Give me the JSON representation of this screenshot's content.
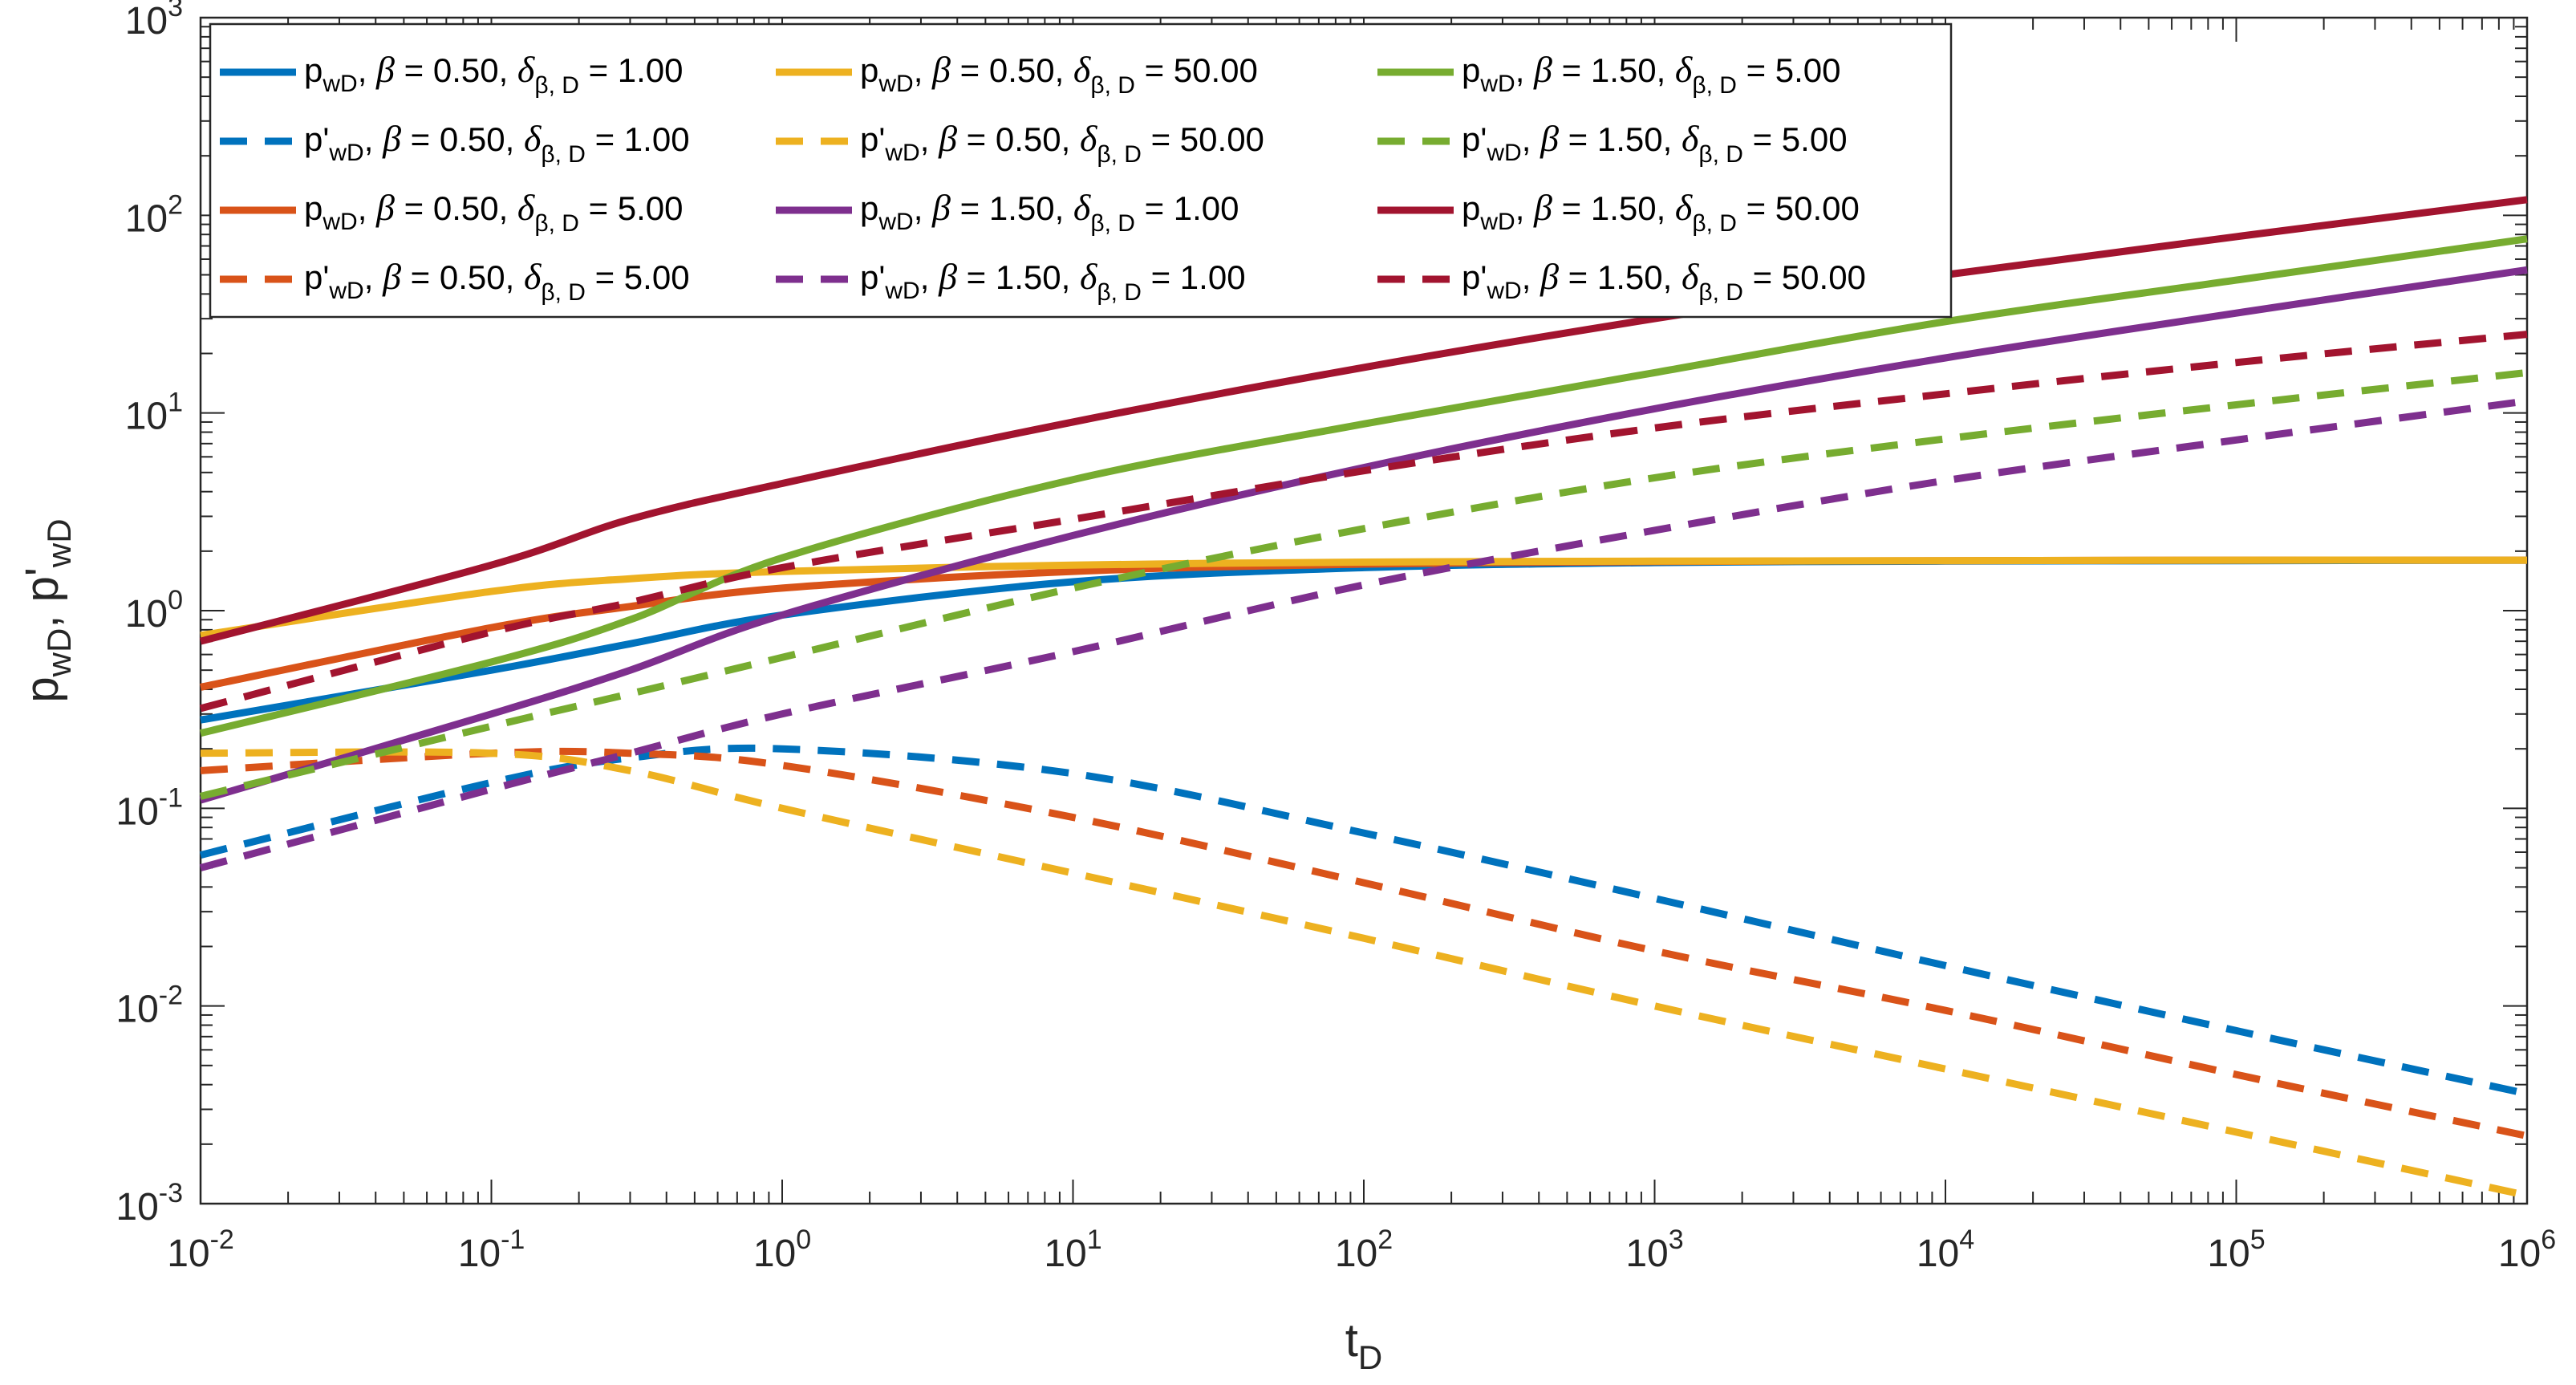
{
  "chart_data": {
    "type": "line",
    "xscale": "log",
    "yscale": "log",
    "xlim": [
      0.01,
      1000000
    ],
    "ylim": [
      0.001,
      1000
    ],
    "xlabel": {
      "main": "t",
      "sub": "D"
    },
    "ylabel": {
      "p": "p",
      "wD1": "wD",
      "sep": ", ",
      "pprime": "p'",
      "wD2": "wD"
    },
    "xticks": [
      {
        "base": "10",
        "exp": "-2",
        "value": 0.01
      },
      {
        "base": "10",
        "exp": "-1",
        "value": 0.1
      },
      {
        "base": "10",
        "exp": "0",
        "value": 1
      },
      {
        "base": "10",
        "exp": "1",
        "value": 10
      },
      {
        "base": "10",
        "exp": "2",
        "value": 100
      },
      {
        "base": "10",
        "exp": "3",
        "value": 1000
      },
      {
        "base": "10",
        "exp": "4",
        "value": 10000
      },
      {
        "base": "10",
        "exp": "5",
        "value": 100000
      },
      {
        "base": "10",
        "exp": "6",
        "value": 1000000
      }
    ],
    "yticks": [
      {
        "base": "10",
        "exp": "-3",
        "value": 0.001
      },
      {
        "base": "10",
        "exp": "-2",
        "value": 0.01
      },
      {
        "base": "10",
        "exp": "-1",
        "value": 0.1
      },
      {
        "base": "10",
        "exp": "0",
        "value": 1
      },
      {
        "base": "10",
        "exp": "1",
        "value": 10
      },
      {
        "base": "10",
        "exp": "2",
        "value": 100
      },
      {
        "base": "10",
        "exp": "3",
        "value": 1000
      }
    ],
    "legend_location": "top-left",
    "legend_columns": 3,
    "x": [
      0.01,
      0.1,
      0.3,
      1,
      10,
      100,
      1000,
      10000,
      100000,
      1000000
    ],
    "series": [
      {
        "name": "pwD, β = 0.50, δβ,D = 1.00",
        "var": "p",
        "sub": "wD",
        "beta": "0.50",
        "delta": "1.00",
        "style": "solid",
        "color": "#0072BD",
        "values": [
          0.28,
          0.5,
          0.68,
          0.95,
          1.4,
          1.65,
          1.75,
          1.78,
          1.79,
          1.8
        ]
      },
      {
        "name": "p'wD, β = 0.50, δβ,D = 1.00",
        "var": "p'",
        "sub": "wD",
        "beta": "0.50",
        "delta": "1.00",
        "style": "dashed",
        "color": "#0072BD",
        "values": [
          0.058,
          0.135,
          0.18,
          0.2,
          0.15,
          0.075,
          0.035,
          0.016,
          0.0075,
          0.0036
        ]
      },
      {
        "name": "pwD, β = 0.50, δβ,D = 5.00",
        "var": "p",
        "sub": "wD",
        "beta": "0.50",
        "delta": "5.00",
        "style": "solid",
        "color": "#D95319",
        "values": [
          0.41,
          0.82,
          1.05,
          1.3,
          1.58,
          1.72,
          1.77,
          1.79,
          1.8,
          1.8
        ]
      },
      {
        "name": "p'wD, β = 0.50, δβ,D = 5.00",
        "var": "p'",
        "sub": "wD",
        "beta": "0.50",
        "delta": "5.00",
        "style": "dashed",
        "color": "#D95319",
        "values": [
          0.155,
          0.19,
          0.19,
          0.165,
          0.09,
          0.042,
          0.019,
          0.0095,
          0.0045,
          0.0022
        ]
      },
      {
        "name": "pwD, β = 0.50, δβ,D = 50.00",
        "var": "p",
        "sub": "wD",
        "beta": "0.50",
        "delta": "50.00",
        "style": "solid",
        "color": "#EDB120",
        "values": [
          0.75,
          1.25,
          1.45,
          1.58,
          1.7,
          1.76,
          1.78,
          1.79,
          1.8,
          1.8
        ]
      },
      {
        "name": "p'wD, β = 0.50, δβ,D = 50.00",
        "var": "p'",
        "sub": "wD",
        "beta": "0.50",
        "delta": "50.00",
        "style": "dashed",
        "color": "#EDB120",
        "values": [
          0.19,
          0.19,
          0.155,
          0.1,
          0.047,
          0.022,
          0.01,
          0.0048,
          0.0023,
          0.0011
        ]
      },
      {
        "name": "pwD, β = 1.50, δβ,D = 1.00",
        "var": "p",
        "sub": "wD",
        "beta": "1.50",
        "delta": "1.00",
        "style": "solid",
        "color": "#7E2F8E",
        "values": [
          0.11,
          0.3,
          0.5,
          0.95,
          2.4,
          5.3,
          10.5,
          19.0,
          32.0,
          53.0
        ]
      },
      {
        "name": "p'wD, β = 1.50, δβ,D = 1.00",
        "var": "p'",
        "sub": "wD",
        "beta": "1.50",
        "delta": "1.00",
        "style": "dashed",
        "color": "#7E2F8E",
        "values": [
          0.05,
          0.125,
          0.19,
          0.3,
          0.62,
          1.35,
          2.55,
          4.55,
          7.3,
          11.5
        ]
      },
      {
        "name": "pwD, β = 1.50, δβ,D = 5.00",
        "var": "p",
        "sub": "wD",
        "beta": "1.50",
        "delta": "5.00",
        "style": "solid",
        "color": "#77AC30",
        "values": [
          0.24,
          0.55,
          0.9,
          1.85,
          4.6,
          8.8,
          16.0,
          29.0,
          47.0,
          76.0
        ]
      },
      {
        "name": "p'wD, β = 1.50, δβ,D = 5.00",
        "var": "p'",
        "sub": "wD",
        "beta": "1.50",
        "delta": "5.00",
        "style": "dashed",
        "color": "#77AC30",
        "values": [
          0.115,
          0.26,
          0.38,
          0.58,
          1.3,
          2.6,
          4.7,
          7.4,
          11.0,
          16.0
        ]
      },
      {
        "name": "pwD, β = 1.50, δβ,D = 50.00",
        "var": "p",
        "sub": "wD",
        "beta": "1.50",
        "delta": "50.00",
        "style": "solid",
        "color": "#A2142F",
        "values": [
          0.7,
          1.7,
          2.9,
          4.4,
          9.0,
          17.0,
          30.0,
          50.0,
          78.0,
          120.0
        ]
      },
      {
        "name": "p'wD, β = 1.50, δβ,D = 50.00",
        "var": "p'",
        "sub": "wD",
        "beta": "1.50",
        "delta": "50.00",
        "style": "dashed",
        "color": "#A2142F",
        "values": [
          0.32,
          0.78,
          1.1,
          1.65,
          2.9,
          5.1,
          8.4,
          12.5,
          18.0,
          25.0
        ]
      }
    ]
  }
}
